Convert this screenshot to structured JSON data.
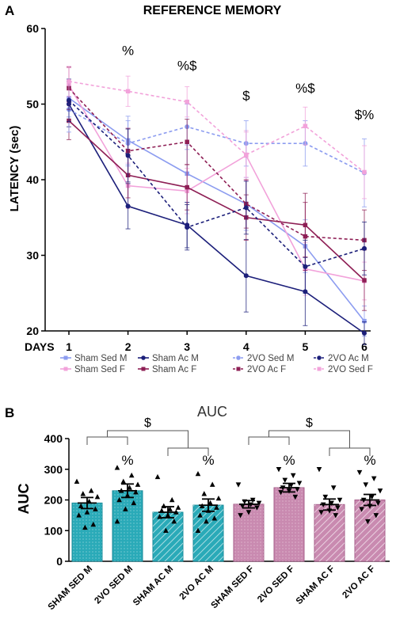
{
  "panelA": {
    "letter": "A",
    "title": "REFERENCE MEMORY",
    "ylabel": "LATENCY (sec)",
    "xlabel": "DAYS",
    "legend": [
      {
        "label": "Sham Sed M",
        "color": "#8c9cf0",
        "dash": false,
        "marker": "square"
      },
      {
        "label": "Sham Ac M",
        "color": "#1c1f7a",
        "dash": false,
        "marker": "circle"
      },
      {
        "label": "2VO Sed M",
        "color": "#8c9cf0",
        "dash": true,
        "marker": "circle"
      },
      {
        "label": "2VO Ac M",
        "color": "#1c1f7a",
        "dash": true,
        "marker": "circle"
      },
      {
        "label": "Sham Sed F",
        "color": "#f2a2da",
        "dash": false,
        "marker": "square"
      },
      {
        "label": "Sham Ac F",
        "color": "#8e1f55",
        "dash": false,
        "marker": "square"
      },
      {
        "label": "2VO Ac F",
        "color": "#8e1f55",
        "dash": true,
        "marker": "square"
      },
      {
        "label": "2VO Sed F",
        "color": "#f2a2da",
        "dash": true,
        "marker": "square"
      }
    ],
    "annotations": [
      {
        "day": 2,
        "text": "%",
        "y": 56.5
      },
      {
        "day": 3,
        "text": "%$",
        "y": 54.5
      },
      {
        "day": 4,
        "text": "$",
        "y": 50.5
      },
      {
        "day": 5,
        "text": "%$",
        "y": 51.5
      },
      {
        "day": 6,
        "text": "$%",
        "y": 48
      }
    ]
  },
  "chart_data": [
    {
      "type": "line",
      "title": "REFERENCE MEMORY",
      "xlabel": "DAYS",
      "ylabel": "LATENCY (sec)",
      "x": [
        1,
        2,
        3,
        4,
        5,
        6
      ],
      "ylim": [
        20,
        60
      ],
      "yticks": [
        20,
        30,
        40,
        50,
        60
      ],
      "grid": false,
      "legend_position": "bottom",
      "series": [
        {
          "name": "Sham Sed M",
          "values": [
            50.8,
            45.2,
            40.8,
            36.8,
            31.2,
            21.3
          ],
          "err": [
            2.5,
            3.2,
            3.8,
            3.5,
            3.5,
            2.0
          ]
        },
        {
          "name": "Sham Sed F",
          "values": [
            52.5,
            39.2,
            38.5,
            43.2,
            28.2,
            26.6
          ],
          "err": [
            2.3,
            3.0,
            3.0,
            3.3,
            3.5,
            2.5
          ]
        },
        {
          "name": "Sham Ac M",
          "values": [
            50.0,
            36.5,
            34.0,
            27.3,
            25.2,
            19.7
          ],
          "err": [
            3.0,
            3.0,
            3.0,
            4.8,
            4.5,
            1.5
          ]
        },
        {
          "name": "Sham Ac F",
          "values": [
            47.8,
            40.6,
            39.0,
            35.0,
            34.0,
            26.7
          ],
          "err": [
            2.5,
            3.0,
            3.0,
            3.0,
            4.2,
            4.0
          ]
        },
        {
          "name": "2VO Sed M",
          "values": [
            49.3,
            44.8,
            47.0,
            44.8,
            44.8,
            40.9
          ],
          "err": [
            3.0,
            3.0,
            3.0,
            3.0,
            3.0,
            4.5
          ]
        },
        {
          "name": "2VO Ac F",
          "values": [
            52.1,
            43.8,
            45.0,
            36.8,
            32.5,
            32.0
          ],
          "err": [
            2.8,
            3.0,
            3.0,
            3.2,
            4.5,
            4.0
          ]
        },
        {
          "name": "2VO Ac M",
          "values": [
            50.5,
            43.2,
            33.7,
            36.3,
            28.5,
            30.9
          ],
          "err": [
            2.8,
            3.5,
            3.0,
            3.5,
            3.5,
            3.5
          ]
        },
        {
          "name": "2VO Sed F",
          "values": [
            53.0,
            51.7,
            50.3,
            43.3,
            47.1,
            41.0
          ],
          "err": [
            2.0,
            2.0,
            2.0,
            3.0,
            2.5,
            3.5
          ]
        }
      ]
    },
    {
      "type": "bar",
      "title": "AUC",
      "ylabel": "AUC",
      "ylim": [
        0,
        400
      ],
      "yticks": [
        0,
        100,
        200,
        300,
        400
      ],
      "categories": [
        "SHAM SED M",
        "2VO SED M",
        "SHAM AC M",
        "2VO AC M",
        "SHAM SED F",
        "2VO SED F",
        "SHAM AC F",
        "2VO AC F"
      ],
      "values": [
        190,
        230,
        160,
        183,
        186,
        240,
        185,
        200
      ],
      "err": [
        18,
        22,
        18,
        20,
        12,
        14,
        18,
        18
      ],
      "markers": [
        "triangle-up",
        "triangle-up",
        "triangle-up",
        "triangle-up",
        "triangle-down",
        "triangle-down",
        "triangle-down",
        "triangle-down"
      ],
      "points": [
        [
          260,
          230,
          220,
          210,
          195,
          180,
          170,
          160,
          150,
          120,
          110
        ],
        [
          305,
          280,
          260,
          250,
          240,
          230,
          225,
          215,
          200,
          190,
          170,
          130
        ],
        [
          275,
          200,
          180,
          175,
          170,
          165,
          160,
          150,
          145,
          130,
          100
        ],
        [
          285,
          250,
          220,
          205,
          190,
          180,
          175,
          165,
          150,
          140,
          130,
          100
        ],
        [
          250,
          200,
          195,
          190,
          185,
          180,
          175,
          160,
          150
        ],
        [
          300,
          280,
          265,
          255,
          248,
          240,
          235,
          230,
          225,
          210
        ],
        [
          300,
          240,
          210,
          200,
          190,
          185,
          175,
          165,
          160,
          150
        ],
        [
          290,
          270,
          250,
          230,
          210,
          200,
          190,
          180,
          170,
          150,
          130
        ]
      ],
      "annotations": [
        {
          "text": "%",
          "bar": 1
        },
        {
          "text": "%",
          "bar": 3
        },
        {
          "text": "%",
          "bar": 5
        },
        {
          "text": "%",
          "bar": 7
        },
        {
          "text": "$",
          "between": [
            [
              0,
              1
            ],
            [
              2,
              3
            ]
          ]
        },
        {
          "text": "$",
          "between": [
            [
              4,
              5
            ],
            [
              6,
              7
            ]
          ]
        }
      ]
    }
  ],
  "panelB": {
    "letter": "B",
    "title": "AUC",
    "ylabel": "AUC",
    "colors": {
      "teal": "#2aaab8",
      "teal_dark": "#178a98",
      "mauve": "#c98ab0",
      "mauve_dark": "#a65e8a"
    }
  }
}
